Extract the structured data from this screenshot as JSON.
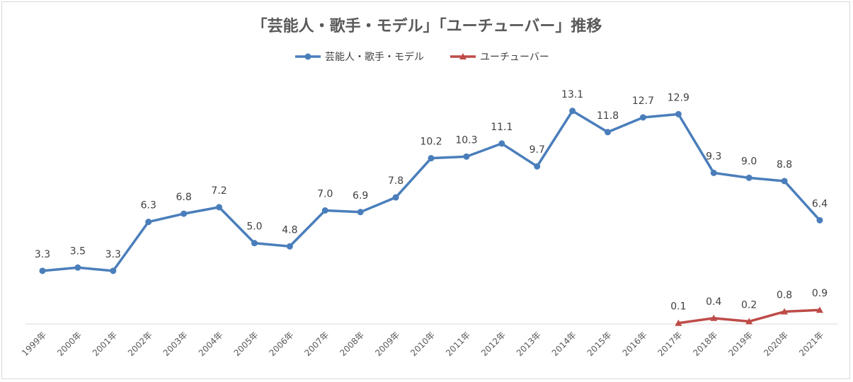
{
  "chart_data": {
    "type": "line",
    "title": "「芸能人・歌手・モデル」「ユーチューバー」推移",
    "xlabel": "",
    "ylabel": "",
    "legend_position": "top-center",
    "grid": false,
    "ylim": [
      0,
      14
    ],
    "categories": [
      "1999年",
      "2000年",
      "2001年",
      "2002年",
      "2003年",
      "2004年",
      "2005年",
      "2006年",
      "2007年",
      "2008年",
      "2009年",
      "2010年",
      "2011年",
      "2012年",
      "2013年",
      "2014年",
      "2015年",
      "2016年",
      "2017年",
      "2018年",
      "2019年",
      "2020年",
      "2021年"
    ],
    "series": [
      {
        "name": "芸能人・歌手・モデル",
        "color": "#4a7ebb",
        "marker": "circle",
        "values": [
          3.3,
          3.5,
          3.3,
          6.3,
          6.8,
          7.2,
          5.0,
          4.8,
          7.0,
          6.9,
          7.8,
          10.2,
          10.3,
          11.1,
          9.7,
          13.1,
          11.8,
          12.7,
          12.9,
          9.3,
          9.0,
          8.8,
          6.4
        ],
        "labels": [
          "3.3",
          "3.5",
          "3.3",
          "6.3",
          "6.8",
          "7.2",
          "5.0",
          "4.8",
          "7.0",
          "6.9",
          "7.8",
          "10.2",
          "10.3",
          "11.1",
          "9.7",
          "13.1",
          "11.8",
          "12.7",
          "12.9",
          "9.3",
          "9.0",
          "8.8",
          "6.4"
        ]
      },
      {
        "name": "ユーチューバー",
        "color": "#be4b48",
        "marker": "triangle",
        "values": [
          null,
          null,
          null,
          null,
          null,
          null,
          null,
          null,
          null,
          null,
          null,
          null,
          null,
          null,
          null,
          null,
          null,
          null,
          0.1,
          0.4,
          0.2,
          0.8,
          0.9
        ],
        "labels": [
          null,
          null,
          null,
          null,
          null,
          null,
          null,
          null,
          null,
          null,
          null,
          null,
          null,
          null,
          null,
          null,
          null,
          null,
          "0.1",
          "0.4",
          "0.2",
          "0.8",
          "0.9"
        ]
      }
    ]
  }
}
